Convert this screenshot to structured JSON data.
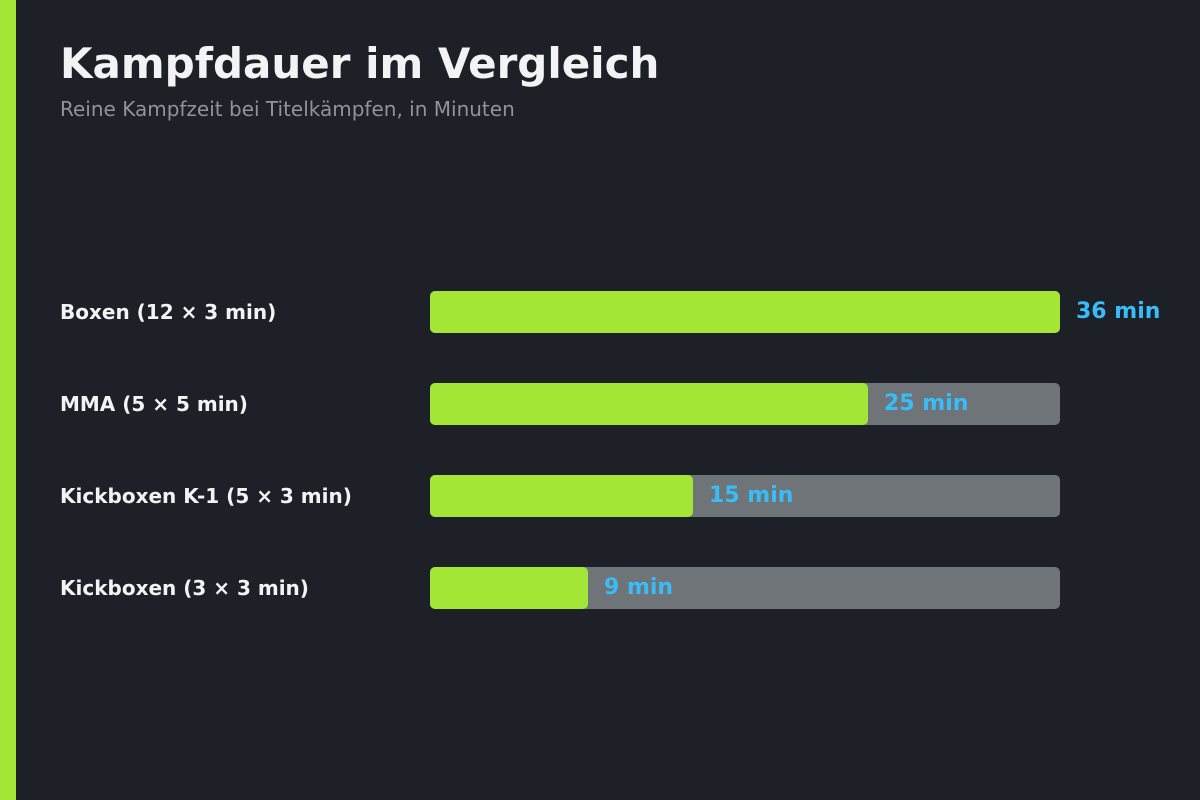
{
  "header": {
    "title": "Kampfdauer im Vergleich",
    "subtitle": "Reine Kampfzeit bei Titelkämpfen, in Minuten"
  },
  "colors": {
    "accent": "#a3e635",
    "track": "#6f7478",
    "value_text": "#38bdf8",
    "background": "#1d2027"
  },
  "chart_data": {
    "type": "bar",
    "orientation": "horizontal",
    "title": "Kampfdauer im Vergleich",
    "subtitle": "Reine Kampfzeit bei Titelkämpfen, in Minuten",
    "categories": [
      "Boxen (12 × 3 min)",
      "MMA (5 × 5 min)",
      "Kickboxen K-1 (5 × 3 min)",
      "Kickboxen (3 × 3 min)"
    ],
    "values": [
      36,
      25,
      15,
      9
    ],
    "value_labels": [
      "36 min",
      "25 min",
      "15 min",
      "9 min"
    ],
    "unit": "min",
    "xlim": [
      0,
      36
    ],
    "grid": false,
    "legend": "none"
  }
}
